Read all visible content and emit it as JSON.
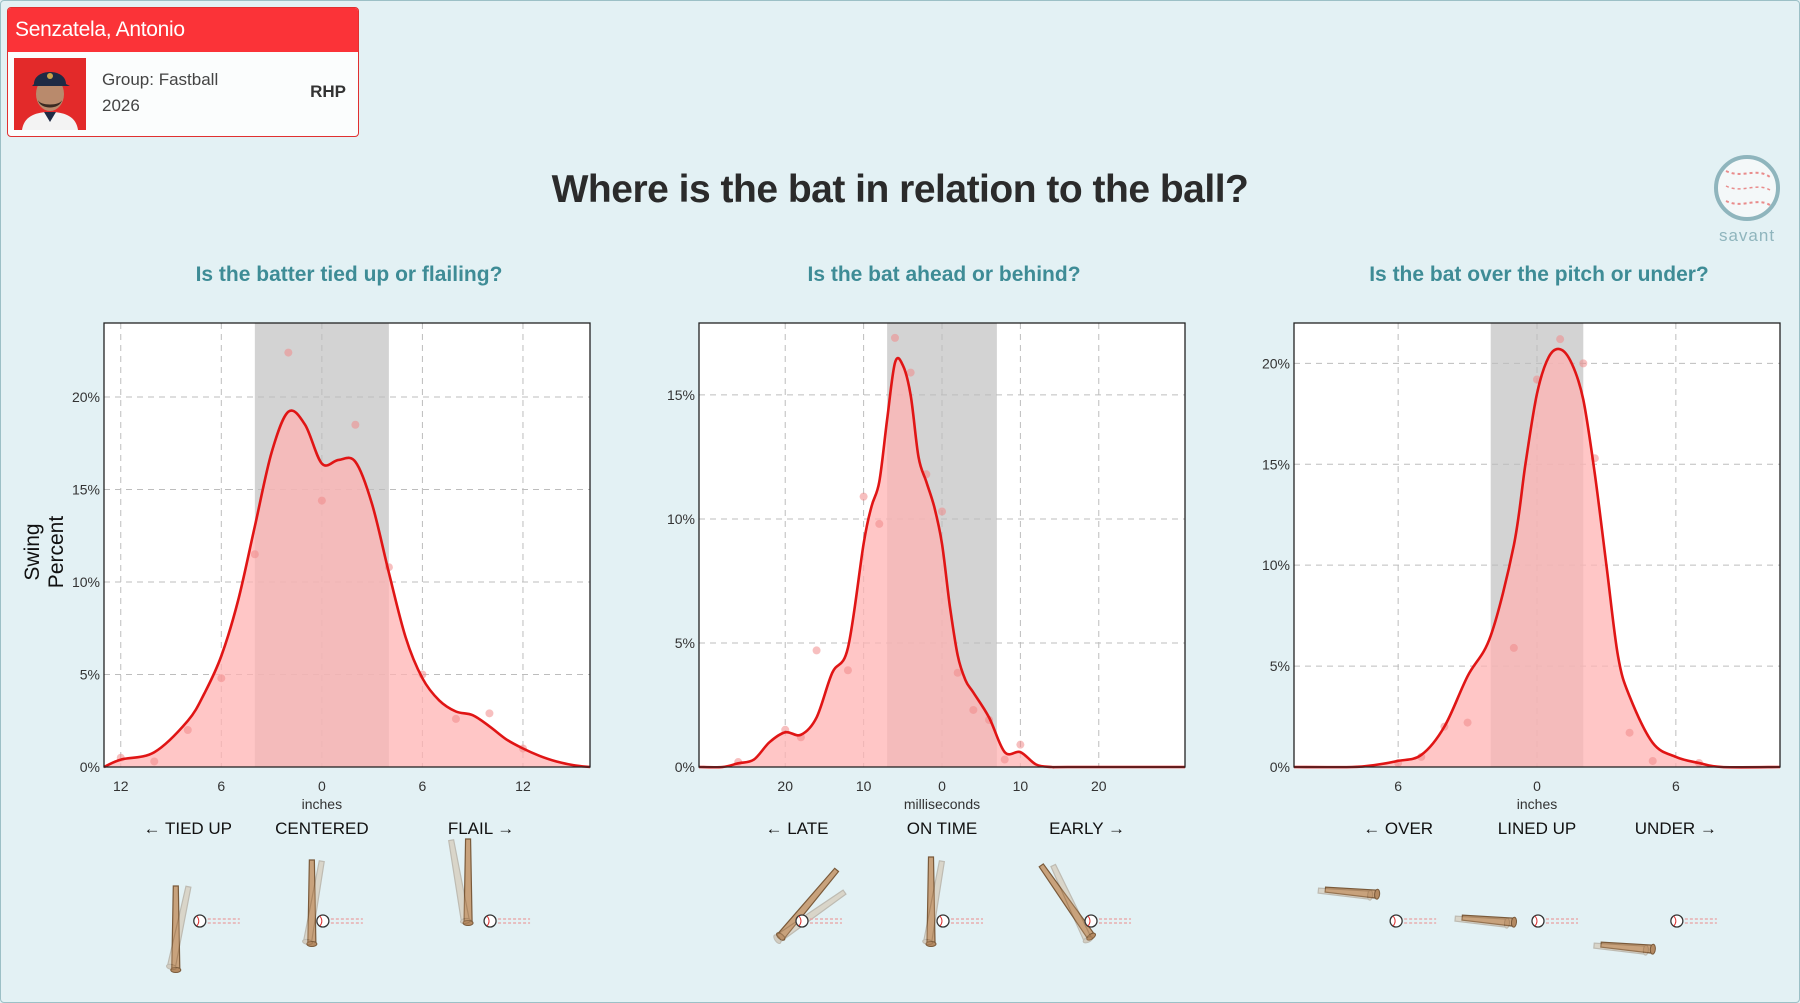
{
  "player": {
    "name": "Senzatela, Antonio",
    "group": "Group: Fastball",
    "year": "2026",
    "hand": "RHP"
  },
  "page_title": "Where is the bat in relation to the ball?",
  "logo_text": "savant",
  "ylabel": "Swing Percent",
  "colors": {
    "curve": "#e01515",
    "fill": "#ffb3b3",
    "band": "#d3d3d3",
    "header": "#fb3338",
    "subtitle": "#3e8c96"
  },
  "chart_data": [
    {
      "type": "area",
      "title": "Is the batter tied up or flailing?",
      "xlabel": "inches",
      "ylabel": "Swing Percent",
      "xlim": [
        -13,
        16
      ],
      "ylim": [
        0,
        24
      ],
      "xticks": [
        -12,
        -6,
        0,
        6,
        12
      ],
      "xtick_labels": [
        "12",
        "6",
        "0",
        "6",
        "12"
      ],
      "yticks": [
        0,
        5,
        10,
        15,
        20
      ],
      "ytick_labels": [
        "0%",
        "5%",
        "10%",
        "15%",
        "20%"
      ],
      "band": [
        -4,
        4
      ],
      "categories": [
        "← TIED UP",
        "CENTERED",
        "FLAIL →"
      ],
      "category_x": [
        -8,
        0,
        9.5
      ],
      "series": [
        {
          "x": [
            -13,
            -12,
            -10,
            -8,
            -7,
            -6,
            -5,
            -4,
            -3,
            -2,
            -1,
            0,
            1,
            2,
            3,
            4,
            5,
            6,
            7,
            8,
            9,
            10,
            11,
            12,
            13,
            14,
            15,
            16
          ],
          "values": [
            0,
            0.4,
            0.8,
            2.5,
            4,
            6,
            9,
            13,
            17,
            19.2,
            18.5,
            16.4,
            16.6,
            16.5,
            14.2,
            10.5,
            7,
            4.8,
            3.6,
            3,
            2.8,
            2.2,
            1.5,
            1.0,
            0.6,
            0.3,
            0.1,
            0
          ]
        }
      ],
      "points": {
        "x": [
          -12,
          -10,
          -8,
          -6,
          -4,
          -2,
          0,
          2,
          4,
          6,
          8,
          10,
          12
        ],
        "values": [
          0.5,
          0.3,
          2,
          4.8,
          11.5,
          22.4,
          14.4,
          18.5,
          10.8,
          5,
          2.6,
          2.9,
          1.0
        ]
      }
    },
    {
      "type": "area",
      "title": "Is the bat ahead or behind?",
      "xlabel": "milliseconds",
      "xlim": [
        -31,
        31
      ],
      "ylim": [
        0,
        17.9
      ],
      "xticks": [
        -20,
        -10,
        0,
        10,
        20
      ],
      "xtick_labels": [
        "20",
        "10",
        "0",
        "10",
        "20"
      ],
      "yticks": [
        0,
        5,
        10,
        15
      ],
      "ytick_labels": [
        "0%",
        "5%",
        "10%",
        "15%"
      ],
      "band": [
        -7,
        7
      ],
      "categories": [
        "← LATE",
        "ON TIME",
        "EARLY →"
      ],
      "category_x": [
        -18.5,
        0,
        18.5
      ],
      "series": [
        {
          "x": [
            -31,
            -28,
            -26,
            -24,
            -22,
            -20,
            -18,
            -16,
            -14,
            -12,
            -10,
            -9,
            -8,
            -7,
            -6,
            -5,
            -4,
            -3,
            -2,
            -1,
            0,
            1,
            2,
            3,
            4,
            6,
            8,
            10,
            12,
            14,
            16,
            31
          ],
          "values": [
            0,
            0,
            0.15,
            0.3,
            1,
            1.4,
            1.3,
            2,
            3.8,
            4.8,
            9,
            10.5,
            11.5,
            14,
            16.3,
            16.2,
            15,
            12.5,
            11.5,
            10.5,
            9,
            6.5,
            4.5,
            3.5,
            3,
            2,
            0.6,
            0.6,
            0.1,
            0,
            0,
            0
          ]
        }
      ],
      "points": {
        "x": [
          -26,
          -20,
          -18,
          -16,
          -12,
          -10,
          -8,
          -6,
          -4,
          -2,
          0,
          2,
          4,
          6,
          8,
          10
        ],
        "values": [
          0.2,
          1.5,
          1.2,
          4.7,
          3.9,
          10.9,
          9.8,
          17.3,
          15.9,
          11.8,
          10.3,
          3.8,
          2.3,
          1.9,
          0.3,
          0.9
        ]
      }
    },
    {
      "type": "area",
      "title": "Is the bat over the pitch or under?",
      "xlabel": "inches",
      "xlim": [
        -10.5,
        10.5
      ],
      "ylim": [
        0,
        22
      ],
      "xticks": [
        -6,
        0,
        6
      ],
      "xtick_labels": [
        "6",
        "0",
        "6"
      ],
      "yticks": [
        0,
        5,
        10,
        15,
        20
      ],
      "ytick_labels": [
        "0%",
        "5%",
        "10%",
        "15%",
        "20%"
      ],
      "band": [
        -2,
        2
      ],
      "categories": [
        "← OVER",
        "LINED UP",
        "UNDER →"
      ],
      "category_x": [
        -6,
        0,
        6
      ],
      "series": [
        {
          "x": [
            -10.5,
            -8,
            -7,
            -6,
            -5,
            -4,
            -3,
            -2,
            -1,
            -0.5,
            0,
            0.5,
            1,
            1.5,
            2,
            2.5,
            3,
            3.5,
            4,
            5,
            6,
            7,
            8,
            10.5
          ],
          "values": [
            0,
            0,
            0.1,
            0.3,
            0.6,
            2,
            4.5,
            6.5,
            11,
            15,
            18.5,
            20.3,
            20.7,
            20,
            18.2,
            14.5,
            10,
            5.5,
            3.5,
            1.2,
            0.5,
            0.2,
            0,
            0
          ]
        }
      ],
      "points": {
        "x": [
          -6,
          -5,
          -4,
          -3,
          -1,
          0,
          1,
          2,
          2.5,
          4,
          5,
          7
        ],
        "values": [
          0.2,
          0.5,
          2,
          2.2,
          5.9,
          19.2,
          21.2,
          20,
          15.3,
          1.7,
          0.3,
          0.2
        ]
      }
    }
  ]
}
